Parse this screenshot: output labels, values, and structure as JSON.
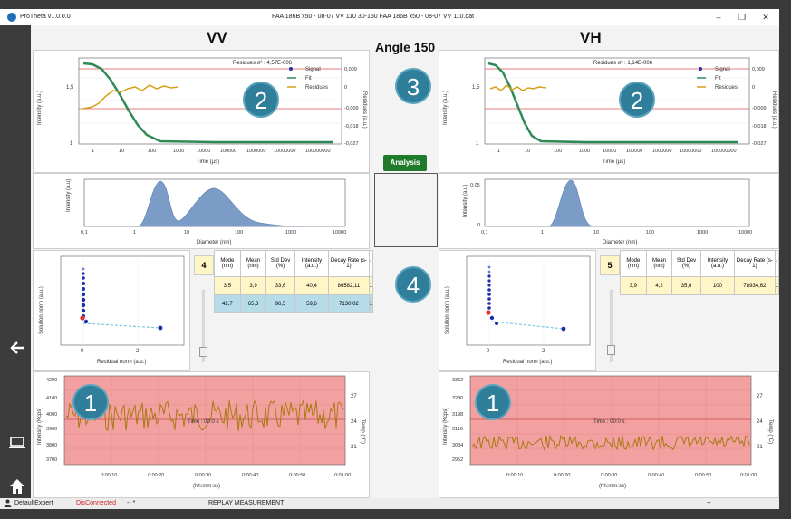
{
  "app": {
    "name": "ProTheta v1.0.0.0",
    "file_title": "FAA 186B x50 - 08-07 VV 110 30-150    FAA 186B x50 - 08-07 VV 110.dat"
  },
  "window_controls": {
    "minimize": "–",
    "maximize": "❐",
    "close": "✕"
  },
  "headings": {
    "vv": "VV",
    "angle": "Angle 150",
    "vh": "VH"
  },
  "analysis_button": "Analysis",
  "badges": {
    "one": "1",
    "two": "2",
    "three": "3",
    "four": "4"
  },
  "correlogram": {
    "vv_residues": "Residues σ² : 4,57E-006",
    "vh_residues": "Residues σ² : 1,14E-006",
    "ylabel": "Intensity (a.u.)",
    "y2label": "Residues (a.u.)",
    "xlabel": "Time (µs)",
    "yticks": [
      "1,5",
      "1"
    ],
    "y2ticks": [
      "0,009",
      "0",
      "-0,009",
      "-0,018",
      "-0,027"
    ],
    "xticks_vv": [
      "1",
      "10",
      "100",
      "1000",
      "10000",
      "100000",
      "1000000",
      "10000000",
      "100000000"
    ],
    "xticks_vh": [
      "1",
      "10",
      "100",
      "1000",
      "10000",
      "100000",
      "1000000",
      "10000000",
      "100000000"
    ],
    "legend": [
      "Signal",
      "Fit",
      "Residues"
    ]
  },
  "distribution": {
    "ylabel": "Intensity (a.u)",
    "xlabel": "Diameter (nm)",
    "xticks": [
      "0,1",
      "1",
      "10",
      "100",
      "1000",
      "10000"
    ],
    "vh_ytick": "0,05",
    "vh_ytick0": "0"
  },
  "lcurve": {
    "ylabel": "Solution norm (a.u.)",
    "xlabel": "Residual norm (a.u.)",
    "xticks": [
      "0",
      "2"
    ]
  },
  "table_vv": {
    "index": "4",
    "headers": [
      "Mode (nm)",
      "Mean (nm)",
      "Std Dev (%)",
      "Intensity (a.u.)",
      "Decay Rate (s-1)",
      "1"
    ],
    "rows": [
      [
        "3,5",
        "3,9",
        "33,6",
        "40,4",
        "86582,11",
        "1"
      ],
      [
        "42,7",
        "65,3",
        "96,5",
        "59,6",
        "7130,02",
        "1"
      ]
    ]
  },
  "table_vh": {
    "index": "5",
    "headers": [
      "Mode (nm)",
      "Mean (nm)",
      "Std Dev (%)",
      "Intensity (a.u.)",
      "Decay Rate (s-1)",
      "1"
    ],
    "rows": [
      [
        "3,9",
        "4,2",
        "35,6",
        "100",
        "78934,62",
        "1"
      ]
    ]
  },
  "count_rate": {
    "ylabel": "Intensity (Kcps)",
    "xlabel": "(hh:mm:ss)",
    "time_label": "Time : 00:0 s",
    "y2label": "Temp (°C)",
    "vv_yticks": [
      "4200",
      "4100",
      "4000",
      "3900",
      "3800",
      "3700"
    ],
    "vh_yticks": [
      "3362",
      "3280",
      "3198",
      "3116",
      "3034",
      "2952"
    ],
    "y2ticks": [
      "27",
      "24",
      "21"
    ],
    "xticks": [
      "0:00:10",
      "0:00:20",
      "0:00:30",
      "0:00:40",
      "0:00:50",
      "0:01:00"
    ]
  },
  "status": {
    "user": "DefaultExpert",
    "connection": "DisConnected",
    "extra": "-- *",
    "mode": "REPLAY MEASUREMENT",
    "right": "--"
  },
  "colors": {
    "signal": "#2233aa",
    "fit": "#2e8b57",
    "residues": "#d4a017",
    "dist_fill": "#7a9cc6",
    "rate_bg": "#f2a0a0",
    "rate_line": "#a87a12",
    "badge": "#2f7e9a",
    "analysis": "#1f7a2c"
  },
  "icons": {
    "back": "arrow-left-icon",
    "computer": "computer-icon",
    "home": "home-icon",
    "user": "user-icon"
  }
}
